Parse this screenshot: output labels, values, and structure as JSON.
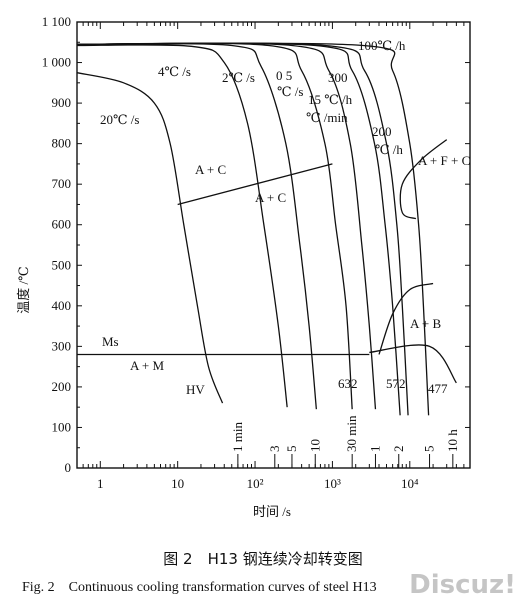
{
  "chart_data": {
    "type": "line",
    "title": "",
    "xlabel": "时间 /s",
    "ylabel": "温度 /℃",
    "xscale": "log",
    "xlim": [
      0.5,
      60000
    ],
    "ylim": [
      0,
      1100
    ],
    "x_ticks": [
      1,
      10,
      100,
      1000,
      10000
    ],
    "x_tick_labels": [
      "1",
      "10",
      "10²",
      "10³",
      "10⁴"
    ],
    "y_ticks": [
      0,
      100,
      200,
      300,
      400,
      500,
      600,
      700,
      800,
      900,
      1000,
      1100
    ],
    "y_tick_labels": [
      "0",
      "100",
      "200",
      "300",
      "400",
      "500",
      "600",
      "700",
      "800",
      "900",
      "1 000",
      "1 100"
    ],
    "time_markers": [
      {
        "label": "1 min",
        "x": 60
      },
      {
        "label": "3",
        "x": 180
      },
      {
        "label": "5",
        "x": 300
      },
      {
        "label": "10",
        "x": 600
      },
      {
        "label": "30 min",
        "x": 1800
      },
      {
        "label": "1",
        "x": 3600
      },
      {
        "label": "2",
        "x": 7200
      },
      {
        "label": "5",
        "x": 18000
      },
      {
        "label": "10 h",
        "x": 36000
      }
    ],
    "series": [
      {
        "name": "20℃ /s",
        "points": [
          [
            0.5,
            975
          ],
          [
            2,
            950
          ],
          [
            5,
            900
          ],
          [
            8,
            800
          ],
          [
            12,
            600
          ],
          [
            18,
            400
          ],
          [
            25,
            250
          ],
          [
            38,
            160
          ]
        ]
      },
      {
        "name": "4℃ /s",
        "points": [
          [
            0.5,
            1042
          ],
          [
            15,
            1040
          ],
          [
            40,
            1000
          ],
          [
            80,
            850
          ],
          [
            130,
            600
          ],
          [
            200,
            350
          ],
          [
            260,
            150
          ]
        ]
      },
      {
        "name": "2℃ /s",
        "points": [
          [
            0.5,
            1045
          ],
          [
            50,
            1042
          ],
          [
            120,
            990
          ],
          [
            250,
            800
          ],
          [
            380,
            550
          ],
          [
            500,
            350
          ],
          [
            620,
            145
          ]
        ]
      },
      {
        "name": "0 5 ℃ /s",
        "points": [
          [
            0.5,
            1045
          ],
          [
            150,
            1042
          ],
          [
            400,
            980
          ],
          [
            800,
            800
          ],
          [
            1100,
            600
          ],
          [
            1500,
            400
          ],
          [
            1800,
            145
          ]
        ]
      },
      {
        "name": "15 ℃ /min",
        "points": [
          [
            0.5,
            1045
          ],
          [
            300,
            1042
          ],
          [
            900,
            980
          ],
          [
            1700,
            800
          ],
          [
            2400,
            550
          ],
          [
            3000,
            350
          ],
          [
            3600,
            145
          ]
        ]
      },
      {
        "name": "300 ℃ /h",
        "points": [
          [
            0.5,
            1045
          ],
          [
            600,
            1042
          ],
          [
            1800,
            980
          ],
          [
            3500,
            800
          ],
          [
            4800,
            600
          ],
          [
            6000,
            400
          ],
          [
            7500,
            130
          ]
        ]
      },
      {
        "name": "200 ℃ /h",
        "points": [
          [
            0.5,
            1045
          ],
          [
            800,
            1042
          ],
          [
            2600,
            980
          ],
          [
            5000,
            800
          ],
          [
            6800,
            600
          ],
          [
            8000,
            400
          ],
          [
            9500,
            130
          ]
        ]
      },
      {
        "name": "100℃ /h",
        "points": [
          [
            0.5,
            1045
          ],
          [
            2500,
            1042
          ],
          [
            6000,
            980
          ],
          [
            10000,
            800
          ],
          [
            13000,
            600
          ],
          [
            15000,
            400
          ],
          [
            17500,
            130
          ]
        ]
      },
      {
        "name": "Ms",
        "points": [
          [
            0.5,
            280
          ],
          [
            3000,
            280
          ]
        ]
      },
      {
        "name": "A + C boundary",
        "points": [
          [
            10,
            650
          ],
          [
            1000,
            750
          ]
        ]
      },
      {
        "name": "A + B boundary",
        "points": [
          [
            3000,
            285
          ],
          [
            18000,
            300
          ],
          [
            40000,
            210
          ]
        ]
      },
      {
        "name": "A + B nose",
        "points": [
          [
            4000,
            280
          ],
          [
            6000,
            380
          ],
          [
            10000,
            440
          ],
          [
            20000,
            455
          ]
        ]
      },
      {
        "name": "A + F + C nose",
        "points": [
          [
            30000,
            810
          ],
          [
            14000,
            760
          ],
          [
            8000,
            700
          ],
          [
            8000,
            630
          ],
          [
            12000,
            615
          ]
        ]
      }
    ],
    "annotations": [
      {
        "text": "A + C",
        "x": 15,
        "y": 720
      },
      {
        "text": "A + C",
        "x": 130,
        "y": 650
      },
      {
        "text": "A + F + C",
        "x": 9000,
        "y": 740
      },
      {
        "text": "A + B",
        "x": 5500,
        "y": 340
      },
      {
        "text": "A + M",
        "x": 3,
        "y": 230
      },
      {
        "text": "HV",
        "x": 10,
        "y": 180
      },
      {
        "text": "632",
        "x": 700,
        "y": 195
      },
      {
        "text": "572",
        "x": 2500,
        "y": 195
      },
      {
        "text": "477",
        "x": 10000,
        "y": 185
      }
    ]
  },
  "caption": {
    "cn": "图 2　H13 钢连续冷却转变图",
    "en": "Fig. 2　Continuous cooling transformation curves of steel H13"
  },
  "watermark": "Discuz!"
}
